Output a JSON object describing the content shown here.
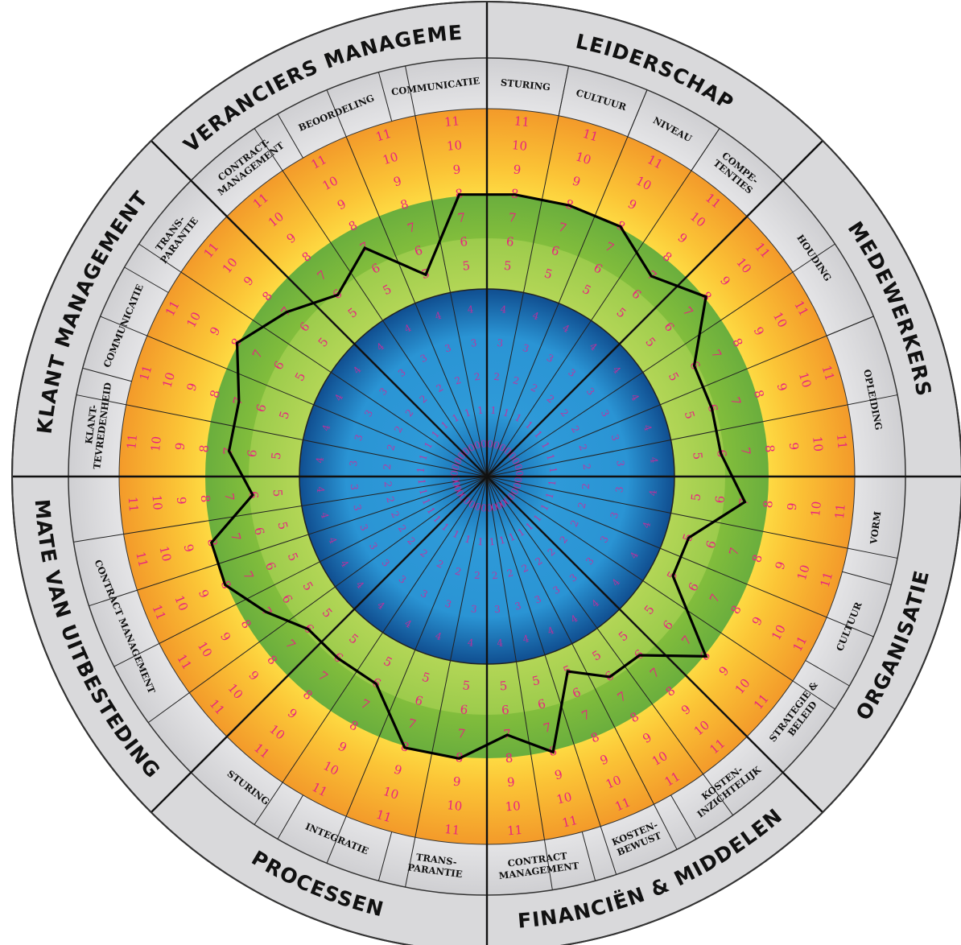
{
  "categories": [
    {
      "name": "LEIDERSCHAP",
      "subs": [
        "STURING",
        "CULTUUR",
        "NIVEAU",
        "COMPE-|TENTIES"
      ]
    },
    {
      "name": "MEDEWERKERS",
      "subs": [
        "HOUDING",
        "OPLEIDING"
      ]
    },
    {
      "name": "ORGANISATIE",
      "subs": [
        "VORM",
        "CULTUUR",
        "STRATEGIE &|BELEID"
      ]
    },
    {
      "name": "FINANCIËN & MIDDELEN",
      "subs": [
        "KOSTEN-|INZICHTELIJK",
        "KOSTEN-|BEWUST",
        "CONTRACT|MANAGEMENT"
      ]
    },
    {
      "name": "PROCESSEN",
      "subs": [
        "TRANS-|PARANTIE",
        "INTEGRATIE",
        "STURING"
      ]
    },
    {
      "name": "MATE VAN UITBESTEDING",
      "subs": [
        "CONTRACT MANAGEMENT"
      ]
    },
    {
      "name": "KLANT MANAGEMENT",
      "subs": [
        "KLANT-|TEVREDENHEID",
        "COMMUNICATIE",
        "TRANS-|PARANTIE"
      ]
    },
    {
      "name": "LEVERANCIERS MANAGEMENT",
      "subs": [
        "CONTRACT-|MANAGEMENT",
        "BEOORDELING",
        "COMMUNICATIE"
      ]
    }
  ],
  "scale": {
    "outer_ticks": [
      "5",
      "6",
      "7",
      "8",
      "9",
      "10",
      "11"
    ],
    "inner_ticks": [
      "0",
      "1",
      "2",
      "3",
      "4"
    ]
  },
  "scores": [
    8,
    8,
    8,
    7,
    8,
    6,
    6,
    6,
    7,
    5,
    5,
    8,
    6,
    6,
    5,
    8,
    7,
    8,
    8,
    6,
    6,
    6,
    7,
    8,
    8,
    6,
    7,
    7,
    8,
    7,
    6,
    7,
    5,
    8
  ],
  "colors": {
    "ring_outer": "#d9d9db",
    "ring_sub": "#e6e6e8",
    "band_orange": "#f39a2a",
    "band_yellow": "#ffe74a",
    "band_green": "#79b842",
    "band_light_green": "#a6cf4c",
    "core_blue": "#1a6fb4",
    "tick_pink": "#e8237f",
    "profile_line": "#000000"
  }
}
